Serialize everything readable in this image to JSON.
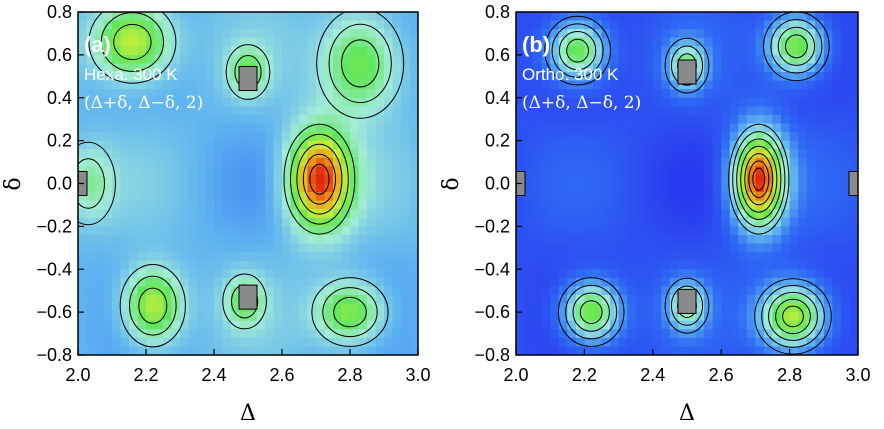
{
  "chart_data": [
    {
      "type": "heatmap",
      "panel_label": "(a)",
      "annotation_lines": [
        "Hexa. 300 K",
        "(Δ+δ, Δ−δ, 2)"
      ],
      "xlabel": "Δ",
      "ylabel": "δ",
      "xlim": [
        2.0,
        3.0
      ],
      "ylim": [
        -0.8,
        0.8
      ],
      "x_ticks": [
        "2.0",
        "2.2",
        "2.4",
        "2.6",
        "2.8",
        "3.0"
      ],
      "y_ticks": [
        "0.8",
        "0.6",
        "0.4",
        "0.2",
        "0.0",
        "−0.2",
        "−0.4",
        "−0.6",
        "−0.8"
      ],
      "background_level": 0.38,
      "peaks": [
        {
          "x": 2.71,
          "y": 0.02,
          "level": 1.0,
          "sx": 0.065,
          "sy": 0.16
        },
        {
          "x": 2.22,
          "y": -0.57,
          "level": 0.78,
          "sx": 0.06,
          "sy": 0.12
        },
        {
          "x": 2.8,
          "y": -0.6,
          "level": 0.72,
          "sx": 0.07,
          "sy": 0.1
        },
        {
          "x": 2.16,
          "y": 0.66,
          "level": 0.8,
          "sx": 0.08,
          "sy": 0.12
        },
        {
          "x": 2.83,
          "y": 0.56,
          "level": 0.7,
          "sx": 0.08,
          "sy": 0.16
        },
        {
          "x": 2.5,
          "y": 0.52,
          "level": 0.6,
          "sx": 0.04,
          "sy": 0.08
        },
        {
          "x": 2.49,
          "y": -0.55,
          "level": 0.6,
          "sx": 0.04,
          "sy": 0.08
        },
        {
          "x": 2.03,
          "y": 0.0,
          "level": 0.55,
          "sx": 0.05,
          "sy": 0.12
        }
      ],
      "masked_regions": [
        {
          "x": 2.5,
          "y": 0.49
        },
        {
          "x": 2.5,
          "y": -0.53
        },
        {
          "x": 2.0,
          "y": 0.0
        }
      ]
    },
    {
      "type": "heatmap",
      "panel_label": "(b)",
      "annotation_lines": [
        "Ortho. 300 K",
        "(Δ+δ, Δ−δ, 2)"
      ],
      "xlabel": "Δ",
      "ylabel": "δ",
      "xlim": [
        2.0,
        3.0
      ],
      "ylim": [
        -0.8,
        0.8
      ],
      "x_ticks": [
        "2.0",
        "2.2",
        "2.4",
        "2.6",
        "2.8",
        "3.0"
      ],
      "y_ticks": [
        "0.8",
        "0.6",
        "0.4",
        "0.2",
        "0.0",
        "−0.2",
        "−0.4",
        "−0.6",
        "−0.8"
      ],
      "background_level": 0.18,
      "peaks": [
        {
          "x": 2.71,
          "y": 0.02,
          "level": 1.0,
          "sx": 0.055,
          "sy": 0.16
        },
        {
          "x": 2.22,
          "y": -0.6,
          "level": 0.72,
          "sx": 0.06,
          "sy": 0.1
        },
        {
          "x": 2.81,
          "y": -0.62,
          "level": 0.78,
          "sx": 0.07,
          "sy": 0.11
        },
        {
          "x": 2.18,
          "y": 0.62,
          "level": 0.7,
          "sx": 0.06,
          "sy": 0.1
        },
        {
          "x": 2.82,
          "y": 0.64,
          "level": 0.72,
          "sx": 0.06,
          "sy": 0.1
        },
        {
          "x": 2.5,
          "y": 0.55,
          "level": 0.55,
          "sx": 0.04,
          "sy": 0.08
        },
        {
          "x": 2.5,
          "y": -0.57,
          "level": 0.55,
          "sx": 0.04,
          "sy": 0.08
        }
      ],
      "masked_regions": [
        {
          "x": 2.5,
          "y": 0.52
        },
        {
          "x": 2.5,
          "y": -0.55
        },
        {
          "x": 2.0,
          "y": 0.0
        },
        {
          "x": 3.0,
          "y": 0.0
        }
      ]
    }
  ],
  "colors": {
    "colormap": [
      "#3a1ec8",
      "#2a3af0",
      "#2f6cf4",
      "#5fb4f0",
      "#a4ecd8",
      "#5ee65a",
      "#c6ee3a",
      "#f2a018",
      "#e02810"
    ],
    "contour_line": "#000000",
    "masked": "#8a8a8a"
  }
}
